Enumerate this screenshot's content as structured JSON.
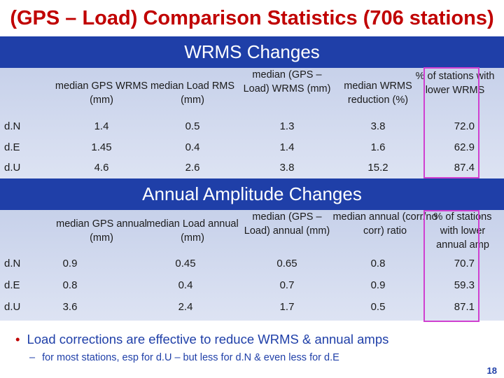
{
  "title": "(GPS – Load) Comparison Statistics (706 stations)",
  "section1": {
    "heading": "WRMS Changes",
    "headers": [
      "median GPS WRMS (mm)",
      "median Load RMS (mm)",
      "median (GPS – Load) WRMS (mm)",
      "median WRMS reduction (%)",
      "% of stations with lower WRMS"
    ],
    "rows": [
      {
        "label": "d.N",
        "values": [
          "1.4",
          "0.5",
          "1.3",
          "3.8",
          "72.0"
        ]
      },
      {
        "label": "d.E",
        "values": [
          "1.45",
          "0.4",
          "1.4",
          "1.6",
          "62.9"
        ]
      },
      {
        "label": "d.U",
        "values": [
          "4.6",
          "2.6",
          "3.8",
          "15.2",
          "87.4"
        ]
      }
    ]
  },
  "section2": {
    "heading": "Annual Amplitude Changes",
    "headers": [
      "median GPS annual (mm)",
      "median Load annual (mm)",
      "median (GPS – Load) annual (mm)",
      "median annual (corr/no corr) ratio",
      "% of stations with lower annual amp"
    ],
    "rows": [
      {
        "label": "d.N",
        "values": [
          "0.9",
          "0.45",
          "0.65",
          "0.8",
          "70.7"
        ]
      },
      {
        "label": "d.E",
        "values": [
          "0.8",
          "0.4",
          "0.7",
          "0.9",
          "59.3"
        ]
      },
      {
        "label": "d.U",
        "values": [
          "3.6",
          "2.4",
          "1.7",
          "0.5",
          "87.1"
        ]
      }
    ]
  },
  "bullet": {
    "symbol": "•",
    "text": "Load corrections are effective to reduce WRMS &  annual amps"
  },
  "subbullet": {
    "symbol": "–",
    "text": "for most stations, esp for d.U – but less for d.N & even less for d.E"
  },
  "page_number": "18",
  "colors": {
    "title": "#c00000",
    "section_bar": "#1f3fa8",
    "highlight_box": "#d040d0",
    "bullet_text": "#1f3fa8"
  }
}
